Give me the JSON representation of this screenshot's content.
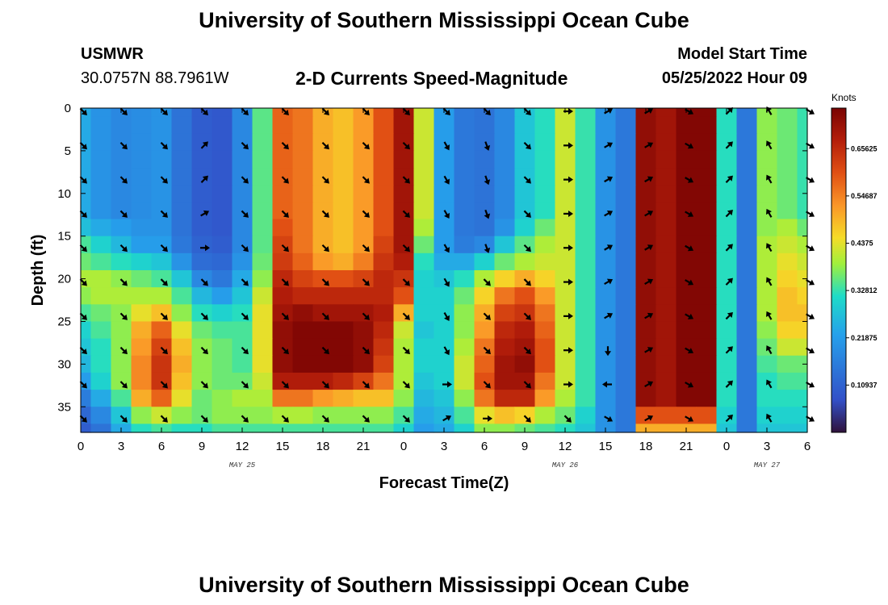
{
  "header": {
    "title": "University of Southern Mississippi Ocean Cube",
    "station_name": "USMWR",
    "station_coords": "30.0757N  88.7961W",
    "subtitle": "2-D Currents Speed-Magnitude",
    "model_start_label": "Model Start Time",
    "model_start_value": "05/25/2022 Hour 09"
  },
  "footer": {
    "title": "University of Southern Mississippi Ocean Cube"
  },
  "chart_data": {
    "type": "heatmap",
    "title": "2-D Currents Speed-Magnitude",
    "xlabel": "Forecast Time(Z)",
    "ylabel": "Depth (ft)",
    "x_tick_labels": [
      "0",
      "3",
      "6",
      "9",
      "12",
      "15",
      "18",
      "21",
      "0",
      "3",
      "6",
      "9",
      "12",
      "15",
      "18",
      "21",
      "0",
      "3",
      "6"
    ],
    "x_range_hours": [
      0,
      54
    ],
    "date_labels": [
      {
        "text": "MAY 25",
        "hour": 12
      },
      {
        "text": "MAY 26",
        "hour": 36
      },
      {
        "text": "MAY 27",
        "hour": 51
      }
    ],
    "y_ticks": [
      0,
      5,
      10,
      15,
      20,
      25,
      30,
      35
    ],
    "ylim": [
      0,
      38
    ],
    "y_inverted": true,
    "colorbar": {
      "label": "Knots",
      "ticks": [
        0.10937,
        0.21875,
        0.32812,
        0.4375,
        0.54687,
        0.65625
      ],
      "range": [
        0,
        0.75
      ]
    },
    "time_hours": [
      0,
      1.5,
      3,
      4.5,
      6,
      7.5,
      9,
      10.5,
      12,
      13.5,
      15,
      16.5,
      18,
      19.5,
      21,
      22.5,
      24,
      25.5,
      27,
      28.5,
      30,
      31.5,
      33,
      34.5,
      36,
      37.5,
      39,
      40.5,
      42,
      43.5,
      45,
      46.5,
      48,
      49.5,
      51,
      52.5,
      54
    ],
    "depths_ft": [
      0,
      2,
      4,
      6,
      8,
      10,
      12,
      14,
      16,
      18,
      20,
      22,
      24,
      26,
      28,
      30,
      32,
      34,
      36,
      38
    ],
    "speed_knots": [
      [
        0.24,
        0.2,
        0.18,
        0.19,
        0.2,
        0.14,
        0.1,
        0.09,
        0.18,
        0.35,
        0.58,
        0.56,
        0.5,
        0.48,
        0.52,
        0.6,
        0.7,
        0.42,
        0.22,
        0.15,
        0.14,
        0.18,
        0.28,
        0.32,
        0.42,
        0.33,
        0.2,
        0.15,
        0.72,
        0.7,
        0.74,
        0.74,
        0.32,
        0.15,
        0.38,
        0.36,
        0.33
      ],
      [
        0.24,
        0.2,
        0.18,
        0.19,
        0.2,
        0.14,
        0.1,
        0.09,
        0.18,
        0.35,
        0.58,
        0.56,
        0.5,
        0.48,
        0.52,
        0.6,
        0.7,
        0.42,
        0.22,
        0.15,
        0.14,
        0.18,
        0.28,
        0.32,
        0.42,
        0.33,
        0.2,
        0.15,
        0.72,
        0.7,
        0.74,
        0.74,
        0.32,
        0.15,
        0.38,
        0.36,
        0.33
      ],
      [
        0.24,
        0.2,
        0.18,
        0.19,
        0.2,
        0.14,
        0.1,
        0.09,
        0.18,
        0.35,
        0.58,
        0.56,
        0.5,
        0.48,
        0.52,
        0.6,
        0.7,
        0.42,
        0.22,
        0.15,
        0.14,
        0.18,
        0.28,
        0.32,
        0.42,
        0.33,
        0.2,
        0.15,
        0.72,
        0.7,
        0.74,
        0.74,
        0.32,
        0.15,
        0.38,
        0.36,
        0.33
      ],
      [
        0.24,
        0.2,
        0.18,
        0.19,
        0.2,
        0.14,
        0.1,
        0.09,
        0.18,
        0.35,
        0.58,
        0.56,
        0.5,
        0.48,
        0.52,
        0.6,
        0.7,
        0.42,
        0.22,
        0.15,
        0.14,
        0.18,
        0.28,
        0.32,
        0.42,
        0.33,
        0.2,
        0.15,
        0.72,
        0.7,
        0.74,
        0.74,
        0.32,
        0.15,
        0.38,
        0.36,
        0.33
      ],
      [
        0.24,
        0.2,
        0.18,
        0.19,
        0.2,
        0.14,
        0.1,
        0.09,
        0.18,
        0.35,
        0.58,
        0.56,
        0.5,
        0.48,
        0.52,
        0.6,
        0.7,
        0.42,
        0.22,
        0.15,
        0.14,
        0.18,
        0.28,
        0.32,
        0.42,
        0.33,
        0.2,
        0.15,
        0.72,
        0.7,
        0.74,
        0.74,
        0.32,
        0.15,
        0.38,
        0.36,
        0.33
      ],
      [
        0.24,
        0.2,
        0.18,
        0.19,
        0.2,
        0.14,
        0.1,
        0.09,
        0.18,
        0.35,
        0.58,
        0.56,
        0.5,
        0.48,
        0.52,
        0.6,
        0.7,
        0.42,
        0.22,
        0.15,
        0.14,
        0.18,
        0.28,
        0.32,
        0.42,
        0.33,
        0.2,
        0.15,
        0.72,
        0.7,
        0.74,
        0.74,
        0.32,
        0.15,
        0.38,
        0.36,
        0.33
      ],
      [
        0.24,
        0.2,
        0.18,
        0.19,
        0.2,
        0.14,
        0.1,
        0.09,
        0.18,
        0.35,
        0.58,
        0.56,
        0.5,
        0.48,
        0.52,
        0.6,
        0.7,
        0.42,
        0.22,
        0.15,
        0.14,
        0.18,
        0.28,
        0.32,
        0.42,
        0.33,
        0.2,
        0.15,
        0.72,
        0.7,
        0.74,
        0.74,
        0.32,
        0.15,
        0.38,
        0.36,
        0.33
      ],
      [
        0.27,
        0.24,
        0.22,
        0.2,
        0.2,
        0.14,
        0.1,
        0.09,
        0.18,
        0.35,
        0.6,
        0.56,
        0.5,
        0.48,
        0.52,
        0.6,
        0.7,
        0.4,
        0.22,
        0.15,
        0.14,
        0.2,
        0.3,
        0.36,
        0.42,
        0.33,
        0.2,
        0.15,
        0.72,
        0.7,
        0.74,
        0.74,
        0.32,
        0.15,
        0.38,
        0.4,
        0.36
      ],
      [
        0.34,
        0.3,
        0.26,
        0.22,
        0.22,
        0.15,
        0.11,
        0.1,
        0.18,
        0.35,
        0.62,
        0.56,
        0.5,
        0.48,
        0.52,
        0.62,
        0.7,
        0.36,
        0.22,
        0.16,
        0.18,
        0.28,
        0.35,
        0.4,
        0.42,
        0.33,
        0.2,
        0.15,
        0.72,
        0.7,
        0.74,
        0.74,
        0.32,
        0.15,
        0.4,
        0.42,
        0.4
      ],
      [
        0.36,
        0.34,
        0.32,
        0.3,
        0.28,
        0.2,
        0.13,
        0.12,
        0.2,
        0.36,
        0.63,
        0.58,
        0.52,
        0.5,
        0.55,
        0.64,
        0.68,
        0.32,
        0.24,
        0.24,
        0.3,
        0.36,
        0.4,
        0.42,
        0.42,
        0.33,
        0.2,
        0.15,
        0.72,
        0.7,
        0.74,
        0.74,
        0.32,
        0.15,
        0.4,
        0.44,
        0.42
      ],
      [
        0.4,
        0.4,
        0.38,
        0.36,
        0.34,
        0.28,
        0.18,
        0.15,
        0.24,
        0.38,
        0.66,
        0.62,
        0.6,
        0.6,
        0.62,
        0.66,
        0.64,
        0.3,
        0.28,
        0.32,
        0.4,
        0.46,
        0.5,
        0.46,
        0.42,
        0.33,
        0.2,
        0.15,
        0.72,
        0.7,
        0.74,
        0.74,
        0.32,
        0.15,
        0.4,
        0.46,
        0.44
      ],
      [
        0.38,
        0.4,
        0.4,
        0.4,
        0.4,
        0.34,
        0.26,
        0.22,
        0.28,
        0.42,
        0.68,
        0.66,
        0.66,
        0.66,
        0.66,
        0.66,
        0.6,
        0.3,
        0.3,
        0.36,
        0.46,
        0.56,
        0.6,
        0.52,
        0.42,
        0.33,
        0.2,
        0.15,
        0.72,
        0.7,
        0.74,
        0.74,
        0.32,
        0.15,
        0.4,
        0.48,
        0.46
      ],
      [
        0.34,
        0.36,
        0.38,
        0.44,
        0.48,
        0.38,
        0.32,
        0.3,
        0.32,
        0.44,
        0.7,
        0.72,
        0.7,
        0.7,
        0.7,
        0.68,
        0.5,
        0.3,
        0.3,
        0.38,
        0.5,
        0.62,
        0.64,
        0.56,
        0.42,
        0.33,
        0.2,
        0.15,
        0.72,
        0.7,
        0.74,
        0.74,
        0.32,
        0.15,
        0.4,
        0.48,
        0.48
      ],
      [
        0.3,
        0.34,
        0.38,
        0.5,
        0.58,
        0.44,
        0.36,
        0.34,
        0.34,
        0.44,
        0.72,
        0.74,
        0.74,
        0.74,
        0.72,
        0.66,
        0.42,
        0.28,
        0.3,
        0.38,
        0.52,
        0.66,
        0.68,
        0.58,
        0.42,
        0.33,
        0.2,
        0.15,
        0.72,
        0.7,
        0.74,
        0.74,
        0.32,
        0.15,
        0.38,
        0.46,
        0.46
      ],
      [
        0.28,
        0.32,
        0.38,
        0.52,
        0.62,
        0.48,
        0.38,
        0.36,
        0.34,
        0.44,
        0.72,
        0.74,
        0.74,
        0.74,
        0.72,
        0.64,
        0.4,
        0.3,
        0.3,
        0.4,
        0.56,
        0.68,
        0.7,
        0.6,
        0.42,
        0.33,
        0.2,
        0.15,
        0.72,
        0.7,
        0.74,
        0.74,
        0.32,
        0.15,
        0.36,
        0.42,
        0.42
      ],
      [
        0.26,
        0.32,
        0.38,
        0.54,
        0.64,
        0.5,
        0.38,
        0.36,
        0.34,
        0.44,
        0.72,
        0.74,
        0.74,
        0.74,
        0.72,
        0.62,
        0.4,
        0.3,
        0.3,
        0.42,
        0.58,
        0.7,
        0.72,
        0.6,
        0.42,
        0.33,
        0.2,
        0.15,
        0.72,
        0.7,
        0.74,
        0.74,
        0.32,
        0.15,
        0.34,
        0.36,
        0.36
      ],
      [
        0.22,
        0.3,
        0.38,
        0.54,
        0.64,
        0.48,
        0.38,
        0.36,
        0.36,
        0.42,
        0.68,
        0.68,
        0.68,
        0.66,
        0.62,
        0.56,
        0.4,
        0.28,
        0.3,
        0.42,
        0.6,
        0.7,
        0.7,
        0.56,
        0.42,
        0.33,
        0.2,
        0.15,
        0.72,
        0.7,
        0.74,
        0.74,
        0.32,
        0.15,
        0.32,
        0.34,
        0.34
      ],
      [
        0.16,
        0.24,
        0.34,
        0.5,
        0.58,
        0.44,
        0.36,
        0.38,
        0.4,
        0.4,
        0.56,
        0.56,
        0.52,
        0.5,
        0.48,
        0.48,
        0.38,
        0.26,
        0.28,
        0.38,
        0.56,
        0.66,
        0.66,
        0.52,
        0.4,
        0.33,
        0.2,
        0.15,
        0.72,
        0.7,
        0.74,
        0.74,
        0.32,
        0.15,
        0.32,
        0.32,
        0.32
      ],
      [
        0.12,
        0.18,
        0.28,
        0.38,
        0.42,
        0.38,
        0.36,
        0.38,
        0.38,
        0.38,
        0.4,
        0.4,
        0.38,
        0.38,
        0.38,
        0.38,
        0.34,
        0.24,
        0.26,
        0.34,
        0.44,
        0.48,
        0.46,
        0.4,
        0.36,
        0.3,
        0.2,
        0.15,
        0.6,
        0.6,
        0.6,
        0.6,
        0.3,
        0.15,
        0.3,
        0.3,
        0.3
      ],
      [
        0.1,
        0.14,
        0.24,
        0.32,
        0.34,
        0.32,
        0.32,
        0.34,
        0.34,
        0.34,
        0.34,
        0.34,
        0.34,
        0.34,
        0.34,
        0.34,
        0.3,
        0.22,
        0.24,
        0.3,
        0.38,
        0.38,
        0.36,
        0.34,
        0.32,
        0.28,
        0.2,
        0.15,
        0.5,
        0.5,
        0.5,
        0.5,
        0.28,
        0.15,
        0.28,
        0.28,
        0.28
      ]
    ],
    "vector_times": [
      0,
      3,
      6,
      9,
      12,
      15,
      18,
      21,
      24,
      27,
      30,
      33,
      36,
      39,
      42,
      45,
      48,
      51,
      54
    ],
    "vector_depths": [
      0,
      4,
      8,
      12,
      16,
      20,
      24,
      28,
      32,
      36
    ],
    "vector_direction_deg": [
      [
        135,
        135,
        135,
        135,
        135,
        135,
        135,
        135,
        135,
        135,
        135,
        135,
        90,
        60,
        60,
        120,
        45,
        330,
        120
      ],
      [
        135,
        135,
        135,
        45,
        135,
        135,
        135,
        135,
        135,
        150,
        160,
        135,
        90,
        60,
        60,
        120,
        45,
        330,
        120
      ],
      [
        135,
        135,
        135,
        45,
        135,
        135,
        135,
        135,
        135,
        150,
        160,
        135,
        90,
        60,
        60,
        120,
        45,
        330,
        120
      ],
      [
        135,
        135,
        135,
        60,
        135,
        135,
        135,
        135,
        135,
        150,
        160,
        135,
        90,
        60,
        60,
        120,
        45,
        330,
        120
      ],
      [
        135,
        135,
        135,
        90,
        135,
        135,
        135,
        135,
        135,
        150,
        160,
        135,
        90,
        60,
        60,
        120,
        45,
        330,
        120
      ],
      [
        135,
        135,
        135,
        135,
        135,
        135,
        135,
        135,
        135,
        150,
        135,
        135,
        90,
        60,
        60,
        120,
        45,
        330,
        120
      ],
      [
        135,
        135,
        135,
        135,
        135,
        135,
        135,
        135,
        135,
        150,
        135,
        135,
        90,
        60,
        60,
        120,
        45,
        330,
        120
      ],
      [
        135,
        135,
        135,
        135,
        135,
        135,
        135,
        135,
        135,
        150,
        135,
        135,
        90,
        180,
        60,
        120,
        45,
        330,
        120
      ],
      [
        135,
        135,
        135,
        135,
        135,
        135,
        135,
        135,
        135,
        90,
        135,
        135,
        90,
        270,
        60,
        120,
        45,
        330,
        120
      ],
      [
        135,
        135,
        135,
        135,
        135,
        135,
        135,
        135,
        135,
        60,
        90,
        135,
        135,
        120,
        60,
        120,
        45,
        330,
        120
      ]
    ]
  }
}
